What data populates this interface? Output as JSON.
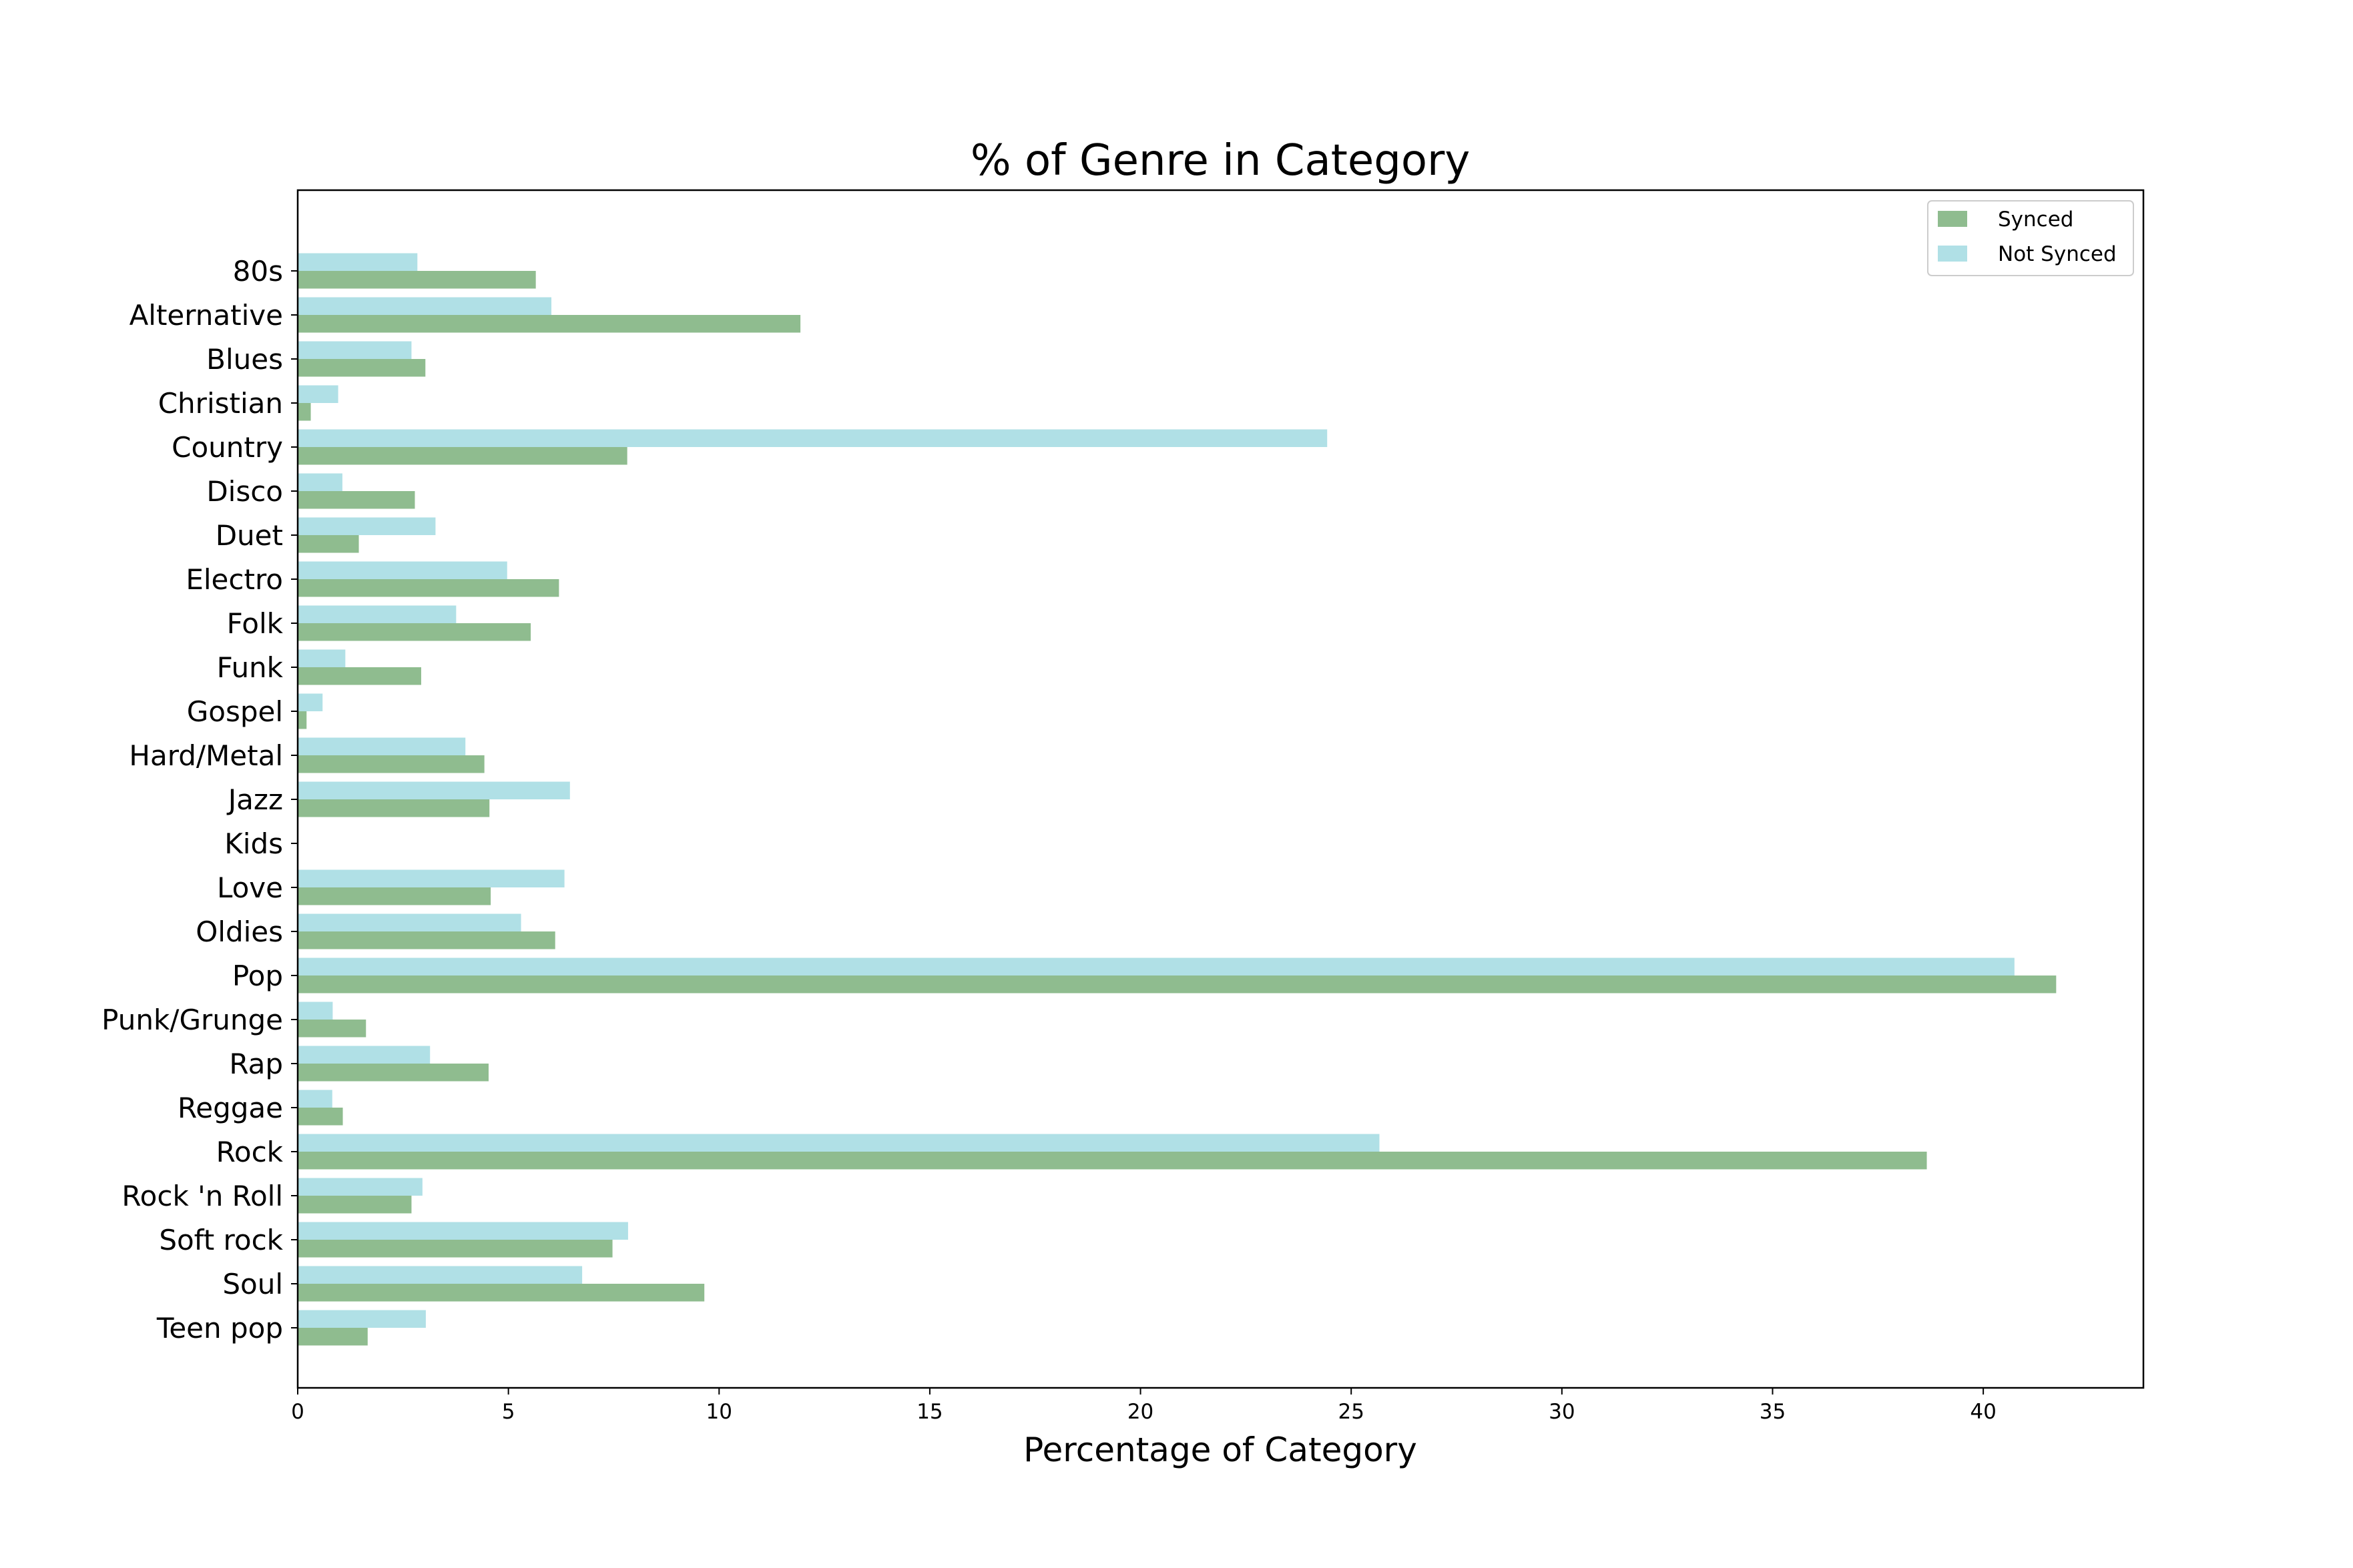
{
  "chart_data": {
    "type": "bar",
    "orientation": "horizontal",
    "title": "% of Genre in Category",
    "xlabel": "Percentage of Category",
    "ylabel": "",
    "xlim": [
      0,
      43.8
    ],
    "xticks": [
      0,
      5,
      10,
      15,
      20,
      25,
      30,
      35,
      40
    ],
    "grid": false,
    "legend_position": "top-right",
    "categories": [
      "80s",
      "Alternative",
      "Blues",
      "Christian",
      "Country",
      "Disco",
      "Duet",
      "Electro",
      "Folk",
      "Funk",
      "Gospel",
      "Hard/Metal",
      "Jazz",
      "Kids",
      "Love",
      "Oldies",
      "Pop",
      "Punk/Grunge",
      "Rap",
      "Reggae",
      "Rock",
      "Rock 'n Roll",
      "Soft rock",
      "Soul",
      "Teen pop"
    ],
    "series": [
      {
        "name": "Synced",
        "color": "#8fbc8f",
        "values": [
          5.65,
          11.93,
          3.03,
          0.31,
          7.82,
          2.78,
          1.45,
          6.2,
          5.53,
          2.93,
          0.21,
          4.43,
          4.55,
          0.0,
          4.58,
          6.11,
          41.73,
          1.62,
          4.53,
          1.07,
          38.66,
          2.7,
          7.47,
          9.65,
          1.66
        ]
      },
      {
        "name": "Not Synced",
        "color": "#b0e0e6",
        "values": [
          2.84,
          6.02,
          2.7,
          0.96,
          24.43,
          1.06,
          3.27,
          4.97,
          3.76,
          1.13,
          0.59,
          3.98,
          6.46,
          0.0,
          6.33,
          5.3,
          40.74,
          0.83,
          3.14,
          0.82,
          25.67,
          2.96,
          7.84,
          6.75,
          3.04
        ]
      }
    ]
  }
}
